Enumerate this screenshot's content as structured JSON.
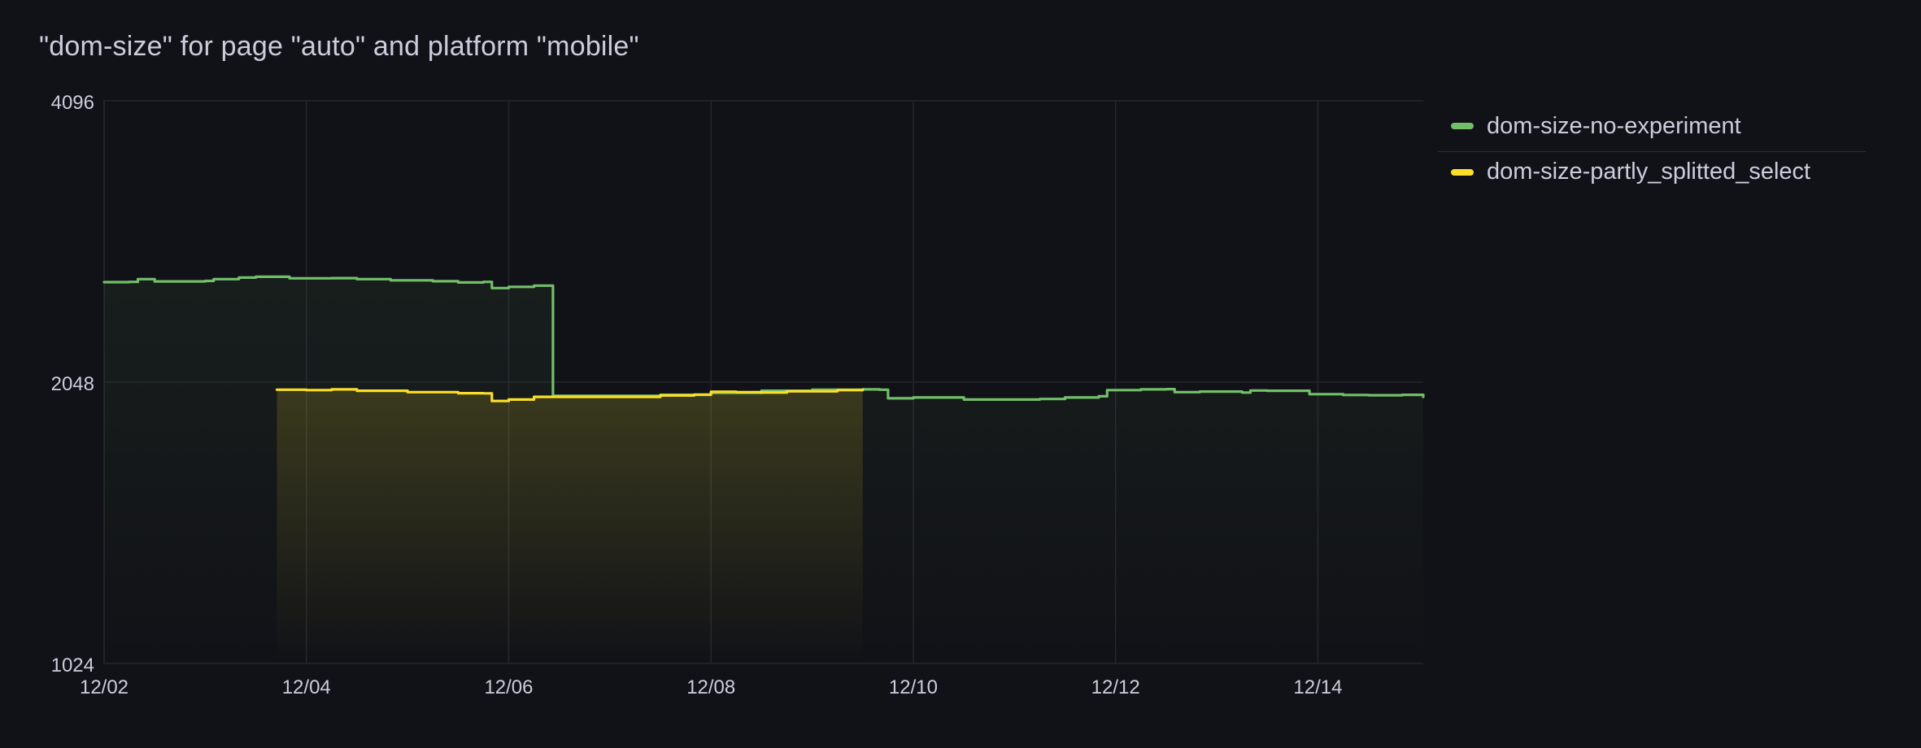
{
  "panel": {
    "title": "\"dom-size\" for page \"auto\" and platform \"mobile\""
  },
  "legend": {
    "items": [
      {
        "label": "dom-size-no-experiment",
        "color": "#73bf69"
      },
      {
        "label": "dom-size-partly_splitted_select",
        "color": "#fade2a"
      }
    ]
  },
  "chart_data": {
    "type": "line",
    "title": "\"dom-size\" for page \"auto\" and platform \"mobile\"",
    "xlabel": "",
    "ylabel": "",
    "y_scale": "log2",
    "ylim": [
      1024,
      4096
    ],
    "y_ticks": [
      1024,
      2048,
      4096
    ],
    "y_tick_labels": [
      "1024",
      "2048",
      "4096"
    ],
    "xlim": [
      "12/02 00:00",
      "12/15 01:00"
    ],
    "x_ticks": [
      "12/02",
      "12/04",
      "12/06",
      "12/08",
      "12/10",
      "12/12",
      "12/14"
    ],
    "x_tick_labels": [
      "12/02",
      "12/04",
      "12/06",
      "12/08",
      "12/10",
      "12/12",
      "12/14"
    ],
    "grid": true,
    "legend_position": "right",
    "series": [
      {
        "name": "dom-size-no-experiment",
        "color": "#73bf69",
        "points": [
          [
            "12/02 00:00",
            2620
          ],
          [
            "12/02 06:00",
            2622
          ],
          [
            "12/02 08:00",
            2640
          ],
          [
            "12/02 12:00",
            2625
          ],
          [
            "12/03 00:00",
            2628
          ],
          [
            "12/03 02:00",
            2640
          ],
          [
            "12/03 08:00",
            2650
          ],
          [
            "12/03 12:00",
            2655
          ],
          [
            "12/03 20:00",
            2645
          ],
          [
            "12/04 06:00",
            2646
          ],
          [
            "12/04 12:00",
            2640
          ],
          [
            "12/04 20:00",
            2632
          ],
          [
            "12/05 06:00",
            2626
          ],
          [
            "12/05 12:00",
            2618
          ],
          [
            "12/05 18:00",
            2622
          ],
          [
            "12/05 20:00",
            2582
          ],
          [
            "12/06 00:00",
            2590
          ],
          [
            "12/06 06:00",
            2598
          ],
          [
            "12/06 10:00",
            2598
          ],
          [
            "12/06 10:30",
            1980
          ],
          [
            "12/07 00:00",
            1980
          ],
          [
            "12/07 12:00",
            1985
          ],
          [
            "12/08 00:00",
            1995
          ],
          [
            "12/08 12:00",
            2005
          ],
          [
            "12/09 00:00",
            2010
          ],
          [
            "12/09 12:00",
            2012
          ],
          [
            "12/09 16:00",
            2010
          ],
          [
            "12/09 18:00",
            1968
          ],
          [
            "12/10 00:00",
            1972
          ],
          [
            "12/10 12:00",
            1962
          ],
          [
            "12/11 00:00",
            1962
          ],
          [
            "12/11 06:00",
            1965
          ],
          [
            "12/11 12:00",
            1972
          ],
          [
            "12/11 20:00",
            1978
          ],
          [
            "12/11 22:00",
            2008
          ],
          [
            "12/12 06:00",
            2012
          ],
          [
            "12/12 12:00",
            2013
          ],
          [
            "12/12 14:00",
            1998
          ],
          [
            "12/12 20:00",
            2001
          ],
          [
            "12/13 06:00",
            1996
          ],
          [
            "12/13 08:00",
            2006
          ],
          [
            "12/13 12:00",
            2005
          ],
          [
            "12/13 22:00",
            1988
          ],
          [
            "12/14 06:00",
            1984
          ],
          [
            "12/14 12:00",
            1983
          ],
          [
            "12/14 20:00",
            1985
          ],
          [
            "12/15 01:00",
            1975
          ]
        ]
      },
      {
        "name": "dom-size-partly_splitted_select",
        "color": "#fade2a",
        "points": [
          [
            "12/03 17:00",
            2010
          ],
          [
            "12/04 00:00",
            2008
          ],
          [
            "12/04 06:00",
            2012
          ],
          [
            "12/04 12:00",
            2005
          ],
          [
            "12/05 00:00",
            1998
          ],
          [
            "12/05 12:00",
            1993
          ],
          [
            "12/05 18:00",
            1992
          ],
          [
            "12/05 20:00",
            1955
          ],
          [
            "12/06 00:00",
            1962
          ],
          [
            "12/06 06:00",
            1975
          ],
          [
            "12/07 00:00",
            1975
          ],
          [
            "12/07 12:00",
            1982
          ],
          [
            "12/07 20:00",
            1986
          ],
          [
            "12/08 00:00",
            2000
          ],
          [
            "12/08 06:00",
            1998
          ],
          [
            "12/08 12:00",
            1996
          ],
          [
            "12/08 18:00",
            2002
          ],
          [
            "12/09 06:00",
            2008
          ],
          [
            "12/09 12:00",
            2010
          ]
        ]
      }
    ]
  }
}
